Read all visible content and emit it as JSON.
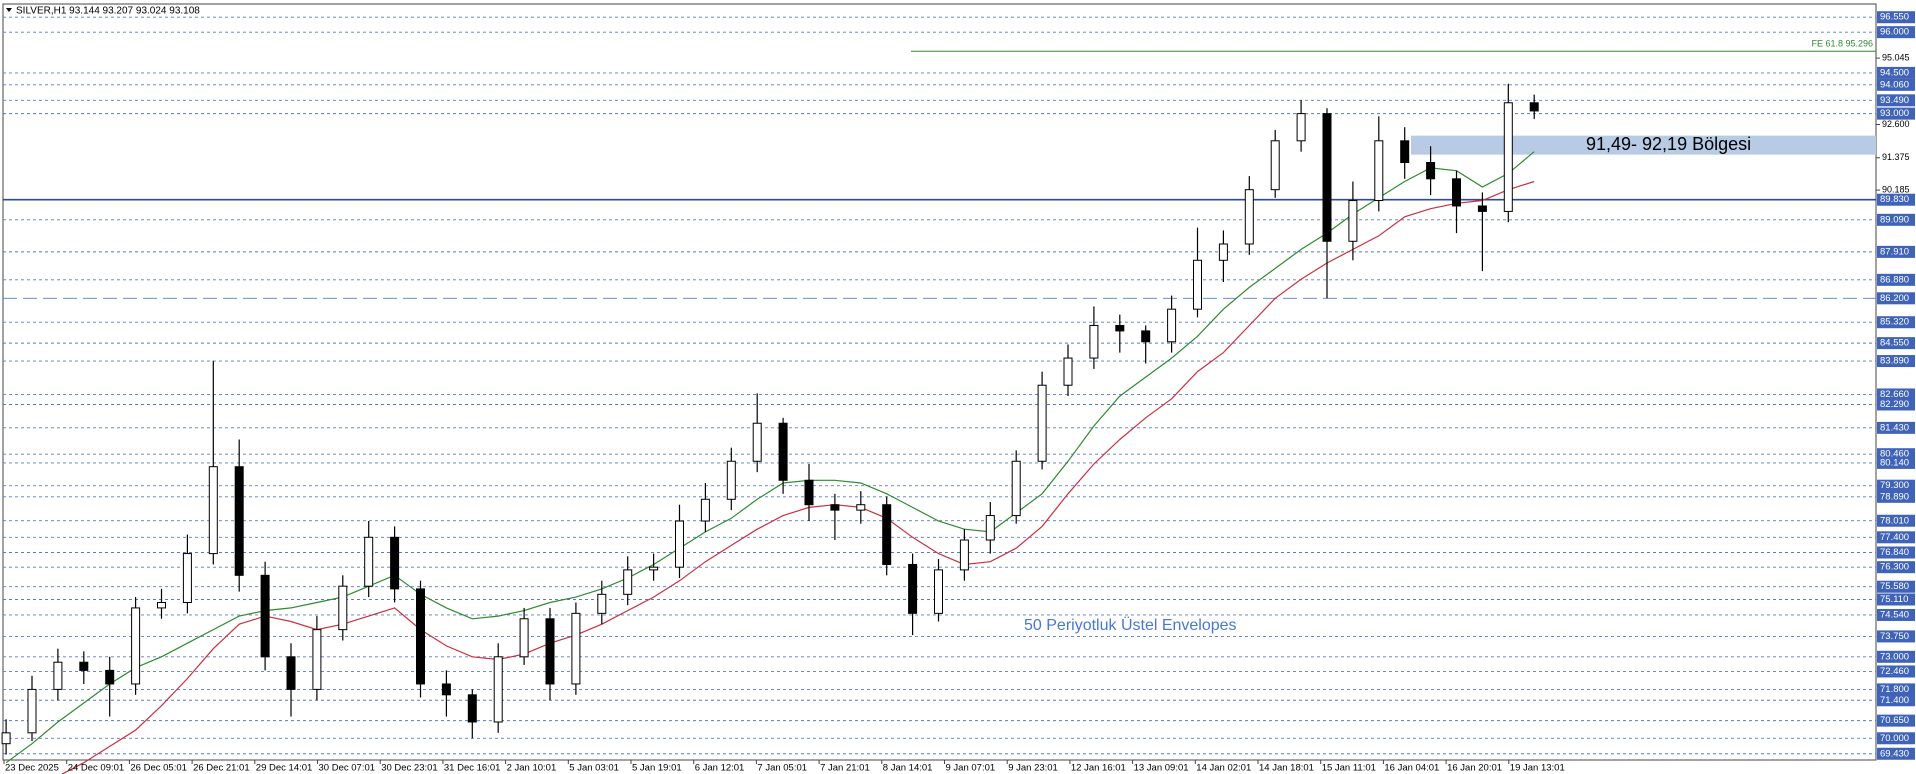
{
  "chart_data": {
    "type": "candlestick",
    "title": "SILVER,H1  93.144 93.207 93.024 93.108",
    "ylim": [
      69.2,
      97.0
    ],
    "yticks": [
      {
        "value": 95.045,
        "label": "95.045"
      },
      {
        "value": 92.6,
        "label": "92.600"
      },
      {
        "value": 91.375,
        "label": "91.375"
      },
      {
        "value": 90.185,
        "label": "90.185"
      }
    ],
    "x_labels": [
      "23 Dec 2025",
      "24 Dec 09:01",
      "26 Dec 05:01",
      "26 Dec 21:01",
      "29 Dec 14:01",
      "30 Dec 07:01",
      "30 Dec 23:01",
      "31 Dec 16:01",
      "2 Jan 10:01",
      "5 Jan 03:01",
      "5 Jan 19:01",
      "6 Jan 12:01",
      "7 Jan 05:01",
      "7 Jan 21:01",
      "8 Jan 14:01",
      "9 Jan 07:01",
      "9 Jan 23:01",
      "12 Jan 16:01",
      "13 Jan 09:01",
      "14 Jan 02:01",
      "14 Jan 18:01",
      "15 Jan 11:01",
      "16 Jan 04:01",
      "16 Jan 20:01",
      "19 Jan 13:01"
    ],
    "open": [
      69.8,
      70.2,
      71.8,
      72.8,
      72.5,
      72.0,
      74.8,
      75.0,
      76.8,
      80.0,
      76.0,
      73.0,
      71.8,
      74.0,
      75.6,
      77.4,
      75.5,
      72.0,
      71.6,
      70.6,
      73.0,
      74.4,
      72.0,
      74.6,
      75.3,
      76.2,
      76.3,
      78.0,
      78.8,
      80.2,
      81.6,
      79.5,
      78.6,
      78.4,
      78.6,
      76.4,
      74.6,
      76.2,
      77.3,
      78.2,
      80.2,
      83.0,
      84.0,
      85.2,
      85.0,
      84.6,
      85.8,
      87.6,
      88.2,
      90.2,
      92.0,
      93.0,
      88.3,
      89.8,
      92.0,
      91.2,
      90.6,
      89.6,
      89.4,
      93.4
    ],
    "high": [
      70.7,
      72.3,
      73.3,
      73.2,
      73.0,
      75.2,
      75.5,
      77.5,
      83.9,
      81.0,
      76.5,
      73.5,
      74.5,
      76.0,
      78.0,
      77.8,
      75.8,
      72.5,
      71.8,
      73.5,
      74.8,
      74.8,
      75.0,
      75.8,
      76.7,
      76.8,
      78.6,
      79.4,
      80.7,
      82.7,
      81.8,
      80.1,
      79.0,
      79.1,
      78.9,
      76.8,
      76.6,
      77.7,
      78.7,
      80.6,
      83.5,
      84.5,
      85.9,
      85.6,
      85.2,
      86.3,
      88.8,
      88.7,
      90.7,
      92.4,
      93.5,
      93.2,
      90.5,
      92.9,
      92.5,
      91.8,
      90.9,
      90.1,
      94.1,
      93.7
    ],
    "low": [
      69.4,
      69.9,
      71.4,
      72.0,
      70.8,
      71.6,
      74.4,
      74.6,
      76.4,
      75.4,
      72.5,
      70.8,
      71.4,
      73.6,
      75.2,
      75.0,
      71.5,
      70.8,
      70.0,
      70.2,
      72.7,
      71.4,
      71.6,
      74.2,
      74.9,
      75.8,
      75.9,
      77.6,
      78.4,
      79.8,
      79.0,
      78.0,
      77.3,
      77.9,
      76.0,
      73.8,
      74.3,
      75.8,
      76.8,
      77.9,
      79.9,
      82.6,
      83.6,
      84.2,
      83.8,
      84.2,
      85.5,
      86.8,
      87.8,
      89.9,
      91.6,
      86.2,
      87.6,
      89.4,
      90.6,
      90.0,
      88.6,
      87.2,
      89.0,
      92.8
    ],
    "close": [
      70.2,
      71.8,
      72.8,
      72.5,
      72.0,
      74.8,
      75.0,
      76.8,
      80.0,
      76.0,
      73.0,
      71.8,
      74.0,
      75.6,
      77.4,
      75.5,
      72.0,
      71.6,
      70.6,
      73.0,
      74.4,
      72.0,
      74.6,
      75.3,
      76.2,
      76.3,
      78.0,
      78.8,
      80.2,
      81.6,
      79.5,
      78.6,
      78.4,
      78.6,
      76.4,
      74.6,
      76.2,
      77.3,
      78.2,
      80.2,
      83.0,
      84.0,
      85.2,
      85.0,
      84.6,
      85.8,
      87.6,
      88.2,
      90.2,
      92.0,
      93.0,
      88.3,
      89.8,
      92.0,
      91.2,
      90.6,
      89.6,
      89.4,
      93.4,
      93.1
    ],
    "envelopes": [
      {
        "color": "#2e8b2e",
        "values": [
          69.1,
          69.8,
          70.6,
          71.3,
          72.0,
          72.6,
          73.0,
          73.5,
          74.0,
          74.5,
          74.7,
          74.8,
          75.0,
          75.2,
          75.6,
          76.0,
          75.3,
          74.8,
          74.4,
          74.5,
          74.7,
          75.0,
          75.2,
          75.5,
          75.9,
          76.4,
          77.0,
          77.6,
          78.1,
          78.8,
          79.4,
          79.5,
          79.5,
          79.4,
          79.0,
          78.5,
          78.0,
          77.7,
          77.6,
          78.3,
          79.0,
          80.2,
          81.5,
          82.6,
          83.3,
          84.0,
          84.8,
          85.8,
          86.6,
          87.3,
          88.0,
          88.6,
          89.3,
          89.9,
          90.5,
          91.0,
          90.9,
          90.3,
          90.8,
          91.6
        ]
      },
      {
        "color": "#c8323c",
        "values": [
          null,
          null,
          68.6,
          69.1,
          69.7,
          70.3,
          71.2,
          72.2,
          73.3,
          74.2,
          74.5,
          74.3,
          74.0,
          74.2,
          74.5,
          74.8,
          74.0,
          73.4,
          73.0,
          72.9,
          73.1,
          73.5,
          73.8,
          74.2,
          74.7,
          75.2,
          75.8,
          76.5,
          77.1,
          77.7,
          78.2,
          78.5,
          78.6,
          78.5,
          78.1,
          77.4,
          76.8,
          76.4,
          76.5,
          77.0,
          77.8,
          79.0,
          80.1,
          81.0,
          81.8,
          82.5,
          83.5,
          84.2,
          85.2,
          86.2,
          86.9,
          87.5,
          88.0,
          88.5,
          89.2,
          89.5,
          89.7,
          89.8,
          90.2,
          90.5
        ]
      }
    ],
    "levels": [
      {
        "value": 96.55,
        "label": "96.550"
      },
      {
        "value": 96.0,
        "label": "96.000"
      },
      {
        "value": 94.5,
        "label": "94.500"
      },
      {
        "value": 94.06,
        "label": "94.060"
      },
      {
        "value": 93.49,
        "label": "93.490"
      },
      {
        "value": 93.0,
        "label": "93.000"
      },
      {
        "value": 89.83,
        "label": "89.830",
        "style": "solid"
      },
      {
        "value": 89.09,
        "label": "89.090"
      },
      {
        "value": 87.91,
        "label": "87.910"
      },
      {
        "value": 86.88,
        "label": "86.880"
      },
      {
        "value": 86.2,
        "label": "86.200",
        "style": "longdash"
      },
      {
        "value": 85.32,
        "label": "85.320"
      },
      {
        "value": 84.55,
        "label": "84.550"
      },
      {
        "value": 83.89,
        "label": "83.890"
      },
      {
        "value": 82.66,
        "label": "82.660"
      },
      {
        "value": 82.29,
        "label": "82.290"
      },
      {
        "value": 81.43,
        "label": "81.430"
      },
      {
        "value": 80.46,
        "label": "80.460"
      },
      {
        "value": 80.14,
        "label": "80.140"
      },
      {
        "value": 79.3,
        "label": "79.300"
      },
      {
        "value": 78.89,
        "label": "78.890"
      },
      {
        "value": 78.01,
        "label": "78.010"
      },
      {
        "value": 77.4,
        "label": "77.400"
      },
      {
        "value": 76.84,
        "label": "76.840"
      },
      {
        "value": 76.3,
        "label": "76.300"
      },
      {
        "value": 75.58,
        "label": "75.580"
      },
      {
        "value": 75.11,
        "label": "75.110"
      },
      {
        "value": 74.54,
        "label": "74.540"
      },
      {
        "value": 73.75,
        "label": "73.750"
      },
      {
        "value": 73.0,
        "label": "73.000"
      },
      {
        "value": 72.46,
        "label": "72.460"
      },
      {
        "value": 71.8,
        "label": "71.800"
      },
      {
        "value": 71.4,
        "label": "71.400"
      },
      {
        "value": 70.65,
        "label": "70.650"
      },
      {
        "value": 70.0,
        "label": "70.000"
      },
      {
        "value": 69.43,
        "label": "69.430"
      }
    ],
    "fe_line": {
      "value": 95.296,
      "label": "FE 61.8 95.296",
      "color": "#2e8b2e"
    },
    "zone": {
      "low": 91.49,
      "high": 92.19,
      "label": "91,49- 92,19 Bölgesi",
      "color": "#b8cbe4"
    },
    "annotation": "50 Periyotluk Üstel Envelopes"
  }
}
